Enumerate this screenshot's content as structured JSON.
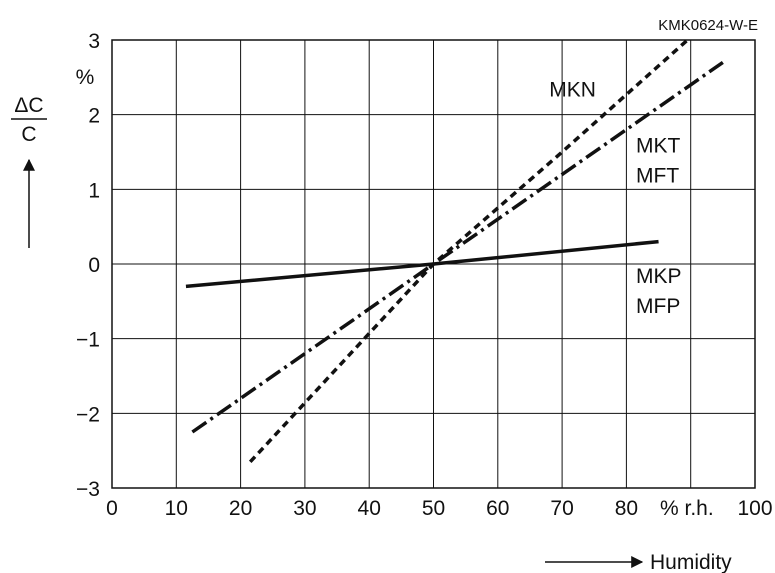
{
  "doc_code": "KMK0624-W-E",
  "ylabel": {
    "numerator": "ΔC",
    "denominator": "C",
    "unit": "%"
  },
  "xlabel": {
    "unit": "% r.h.",
    "name": "Humidity"
  },
  "chart_data": {
    "type": "line",
    "xlim": [
      0,
      100
    ],
    "ylim": [
      -3,
      3
    ],
    "x_ticks": [
      "0",
      "10",
      "20",
      "30",
      "40",
      "50",
      "60",
      "70",
      "80",
      "",
      "100"
    ],
    "y_ticks": [
      "-3",
      "-2",
      "-1",
      "0",
      "1",
      "2",
      "3"
    ],
    "grid": true,
    "series": [
      {
        "name": "MKN",
        "style": "dotted",
        "points": [
          [
            21.5,
            -2.65
          ],
          [
            50,
            0
          ],
          [
            70,
            1.5
          ],
          [
            89.5,
            3.0
          ]
        ]
      },
      {
        "name": "MKT MFT",
        "style": "dash-dot",
        "points": [
          [
            12.5,
            -2.25
          ],
          [
            50,
            0
          ],
          [
            95,
            2.7
          ]
        ]
      },
      {
        "name": "MKP MFP",
        "style": "solid",
        "points": [
          [
            11.5,
            -0.3
          ],
          [
            50,
            0
          ],
          [
            85,
            0.3
          ]
        ]
      }
    ],
    "labels": [
      {
        "text": "MKN",
        "x": 68,
        "y": 2.35
      },
      {
        "text": "MKT",
        "x": 81.5,
        "y": 1.6
      },
      {
        "text": "MFT",
        "x": 81.5,
        "y": 1.2
      },
      {
        "text": "MKP",
        "x": 81.5,
        "y": -0.15
      },
      {
        "text": "MFP",
        "x": 81.5,
        "y": -0.55
      }
    ]
  }
}
